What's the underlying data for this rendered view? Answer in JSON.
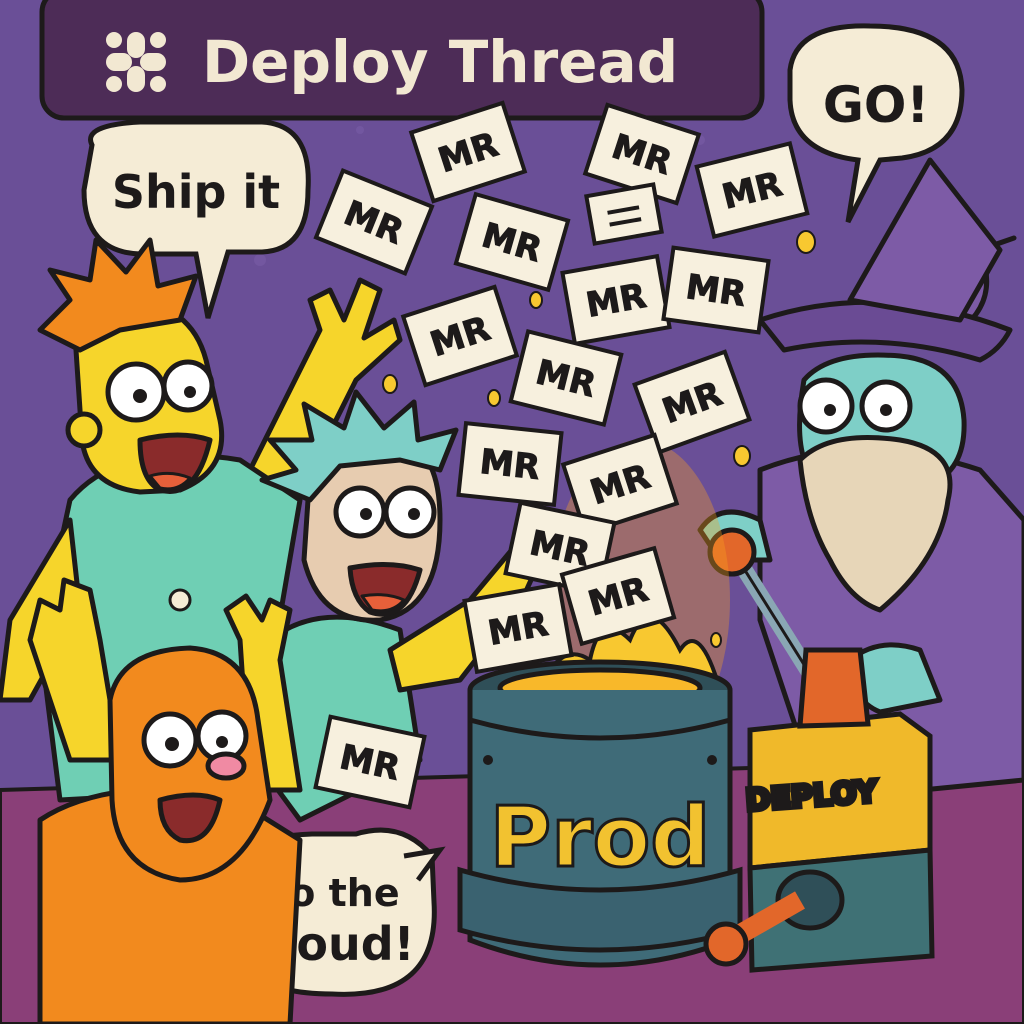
{
  "header": {
    "title": "Deploy Thread",
    "logo_icon": "slack-logo-icon"
  },
  "bubbles": {
    "ship_it": "Ship it",
    "go": "GO!",
    "cloud_line1": "To the",
    "cloud_line2": "cloud!"
  },
  "cauldron": {
    "label": "Prod"
  },
  "deploy_box": {
    "label": "DEPLOY"
  },
  "cards": {
    "label": "MR"
  },
  "colors": {
    "background": "#6a4f97",
    "header_bg": "#4d2c57",
    "header_text": "#f2e8d2",
    "bubble": "#f5ecd6",
    "card": "#f7f0de",
    "cauldron": "#3f6b78",
    "prod_text": "#f2c230",
    "box_top": "#f0b92a",
    "box_bottom": "#3f7175",
    "lever": "#e2672a",
    "fire": "#f8a020"
  }
}
